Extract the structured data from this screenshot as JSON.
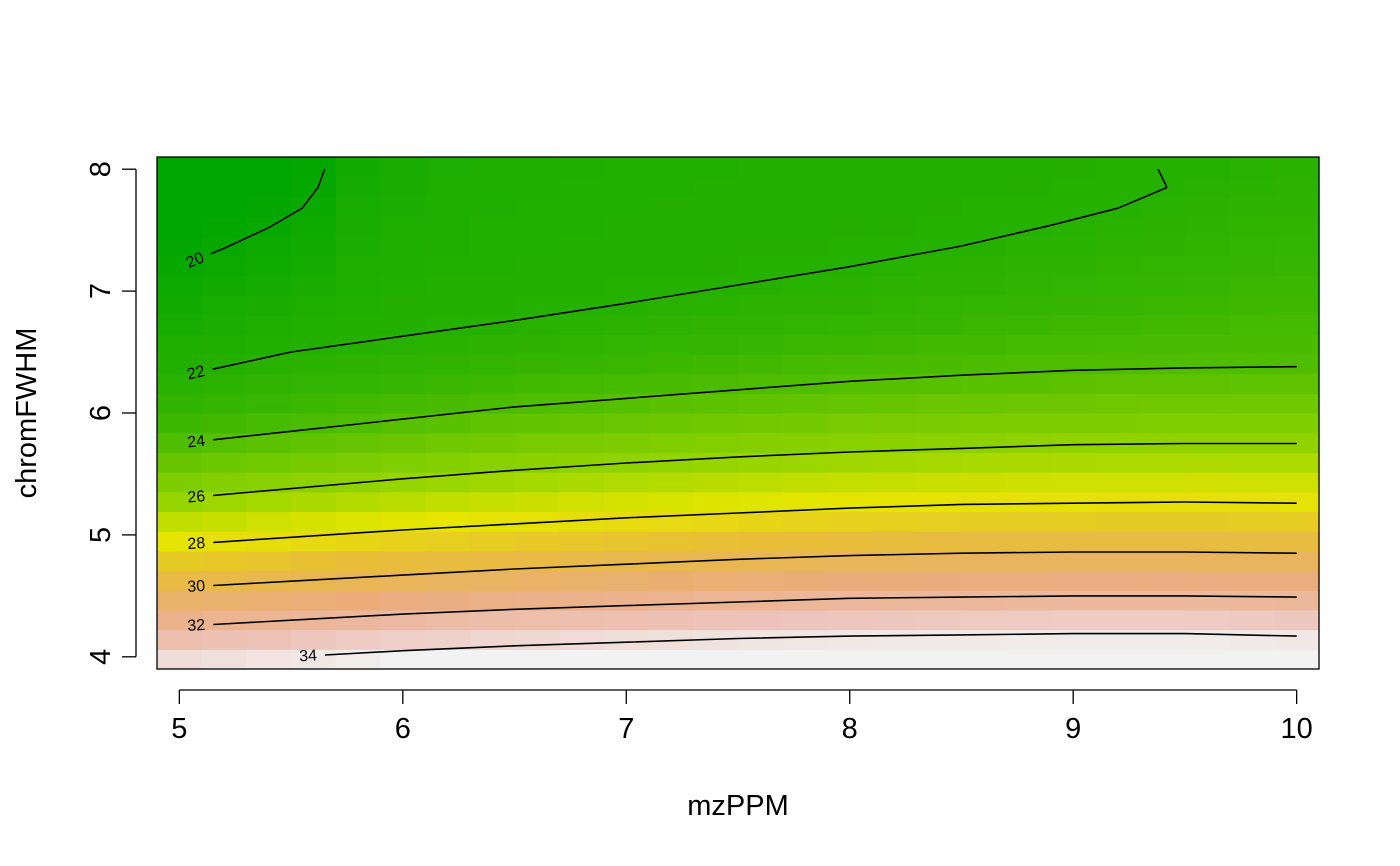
{
  "chart_data": {
    "type": "heatmap",
    "subtype": "filled contour with level lines",
    "title": "",
    "xlabel": "mzPPM",
    "ylabel": "chromFWHM",
    "xlim": [
      4.9,
      10.1
    ],
    "ylim": [
      3.9,
      8.1
    ],
    "x_ticks": [
      5,
      6,
      7,
      8,
      9,
      10
    ],
    "y_ticks": [
      4,
      5,
      6,
      7,
      8
    ],
    "x_tick_labels": [
      "5",
      "6",
      "7",
      "8",
      "9",
      "10"
    ],
    "y_tick_labels": [
      "4",
      "5",
      "6",
      "7",
      "8"
    ],
    "grid": false,
    "legend": "none",
    "color_scale": {
      "palette": "terrain",
      "low_color": "#00a600",
      "mid_color": "#e6e600",
      "high_color": "#f2f2f2",
      "zmin": 19.5,
      "zmax": 34.5
    },
    "contours": [
      {
        "level": 20,
        "label": "20",
        "points": [
          [
            5.0,
            7.2
          ],
          [
            5.2,
            7.35
          ],
          [
            5.4,
            7.52
          ],
          [
            5.55,
            7.68
          ],
          [
            5.62,
            7.85
          ],
          [
            5.65,
            8.0
          ]
        ]
      },
      {
        "level": 20,
        "label": "",
        "points": [
          [
            9.42,
            7.85
          ],
          [
            9.38,
            8.0
          ]
        ]
      },
      {
        "level": 22,
        "label": "22",
        "points": [
          [
            5.0,
            6.3
          ],
          [
            5.5,
            6.5
          ],
          [
            6.0,
            6.63
          ],
          [
            6.5,
            6.76
          ],
          [
            7.0,
            6.9
          ],
          [
            7.5,
            7.05
          ],
          [
            8.0,
            7.2
          ],
          [
            8.5,
            7.37
          ],
          [
            8.9,
            7.54
          ],
          [
            9.2,
            7.68
          ],
          [
            9.42,
            7.85
          ]
        ]
      },
      {
        "level": 24,
        "label": "24",
        "points": [
          [
            5.0,
            5.75
          ],
          [
            5.5,
            5.85
          ],
          [
            6.0,
            5.95
          ],
          [
            6.5,
            6.05
          ],
          [
            7.0,
            6.12
          ],
          [
            7.5,
            6.19
          ],
          [
            8.0,
            6.26
          ],
          [
            8.5,
            6.31
          ],
          [
            9.0,
            6.35
          ],
          [
            9.5,
            6.37
          ],
          [
            10.0,
            6.38
          ]
        ]
      },
      {
        "level": 26,
        "label": "26",
        "points": [
          [
            5.0,
            5.3
          ],
          [
            5.5,
            5.38
          ],
          [
            6.0,
            5.46
          ],
          [
            6.5,
            5.53
          ],
          [
            7.0,
            5.59
          ],
          [
            7.5,
            5.64
          ],
          [
            8.0,
            5.68
          ],
          [
            8.5,
            5.71
          ],
          [
            9.0,
            5.74
          ],
          [
            9.5,
            5.75
          ],
          [
            10.0,
            5.75
          ]
        ]
      },
      {
        "level": 28,
        "label": "28",
        "points": [
          [
            5.0,
            4.92
          ],
          [
            5.5,
            4.98
          ],
          [
            6.0,
            5.04
          ],
          [
            6.5,
            5.09
          ],
          [
            7.0,
            5.14
          ],
          [
            7.5,
            5.18
          ],
          [
            8.0,
            5.22
          ],
          [
            8.5,
            5.25
          ],
          [
            9.0,
            5.26
          ],
          [
            9.5,
            5.27
          ],
          [
            10.0,
            5.26
          ]
        ]
      },
      {
        "level": 30,
        "label": "30",
        "points": [
          [
            5.0,
            4.57
          ],
          [
            5.5,
            4.62
          ],
          [
            6.0,
            4.67
          ],
          [
            6.5,
            4.72
          ],
          [
            7.0,
            4.76
          ],
          [
            7.5,
            4.8
          ],
          [
            8.0,
            4.83
          ],
          [
            8.5,
            4.85
          ],
          [
            9.0,
            4.86
          ],
          [
            9.5,
            4.86
          ],
          [
            10.0,
            4.85
          ]
        ]
      },
      {
        "level": 32,
        "label": "32",
        "points": [
          [
            5.0,
            4.25
          ],
          [
            5.5,
            4.3
          ],
          [
            6.0,
            4.35
          ],
          [
            6.5,
            4.39
          ],
          [
            7.0,
            4.42
          ],
          [
            7.5,
            4.45
          ],
          [
            8.0,
            4.48
          ],
          [
            8.5,
            4.49
          ],
          [
            9.0,
            4.5
          ],
          [
            9.5,
            4.5
          ],
          [
            10.0,
            4.49
          ]
        ]
      },
      {
        "level": 34,
        "label": "34",
        "points": [
          [
            5.5,
            4.0
          ],
          [
            6.0,
            4.05
          ],
          [
            6.5,
            4.09
          ],
          [
            7.0,
            4.12
          ],
          [
            7.5,
            4.15
          ],
          [
            8.0,
            4.17
          ],
          [
            8.5,
            4.18
          ],
          [
            9.0,
            4.19
          ],
          [
            9.5,
            4.19
          ],
          [
            10.0,
            4.17
          ]
        ]
      }
    ]
  }
}
